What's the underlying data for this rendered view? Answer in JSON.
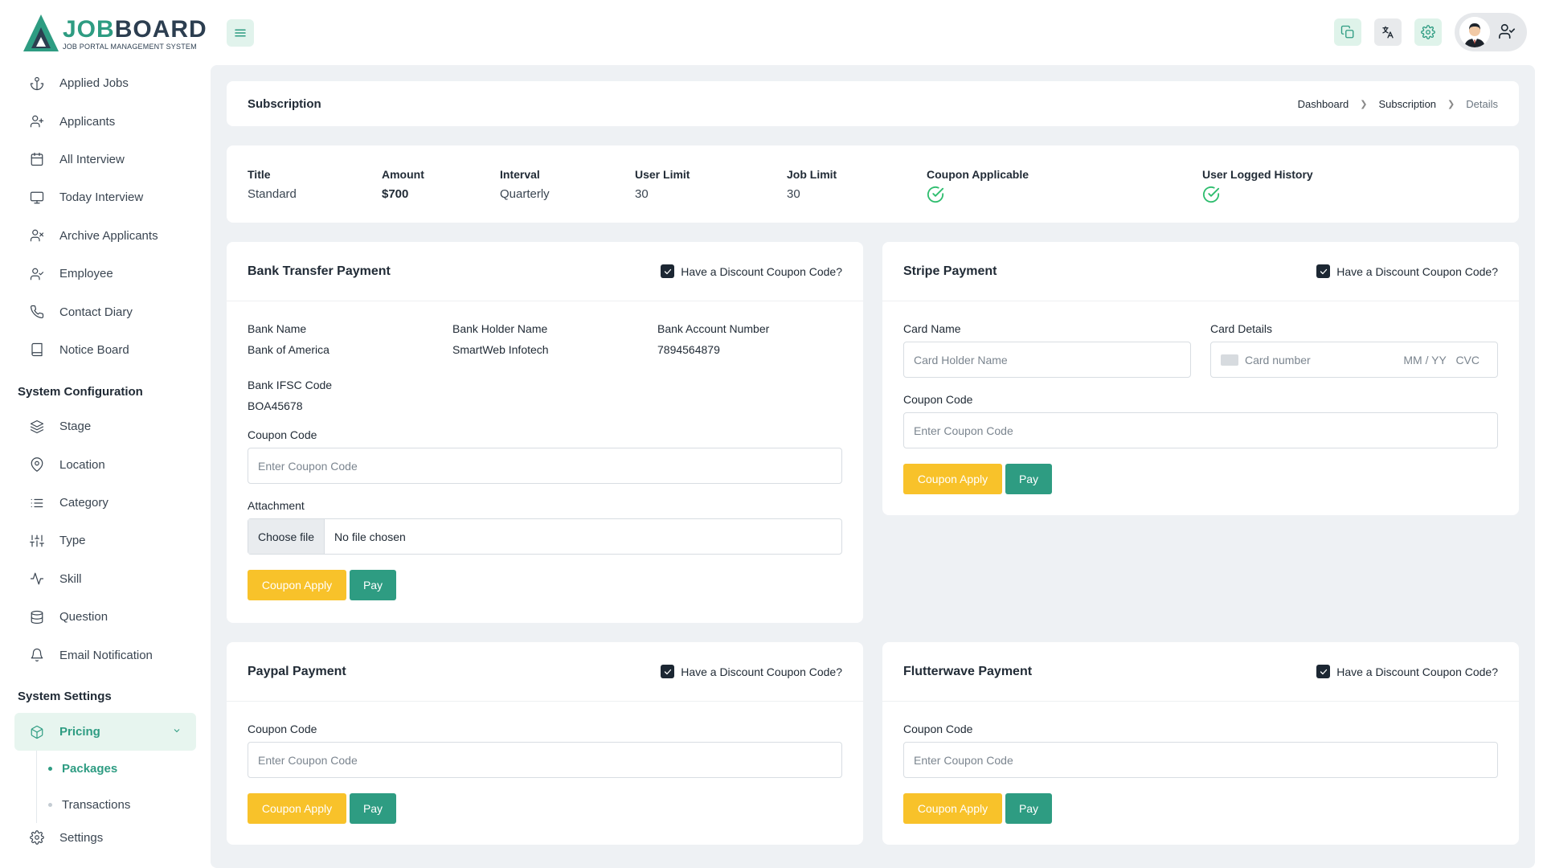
{
  "brand": {
    "title_main": "JOB",
    "title_accent": "BOARD",
    "subtitle": "JOB PORTAL MANAGEMENT SYSTEM"
  },
  "sidebar": {
    "items": [
      {
        "label": "Applied Jobs",
        "icon": "anchor-icon"
      },
      {
        "label": "Applicants",
        "icon": "user-plus-icon"
      },
      {
        "label": "All Interview",
        "icon": "calendar-icon"
      },
      {
        "label": "Today Interview",
        "icon": "monitor-icon"
      },
      {
        "label": "Archive Applicants",
        "icon": "user-x-icon"
      },
      {
        "label": "Employee",
        "icon": "user-check-icon"
      },
      {
        "label": "Contact Diary",
        "icon": "phone-icon"
      },
      {
        "label": "Notice Board",
        "icon": "book-icon"
      }
    ],
    "config_title": "System Configuration",
    "config_items": [
      {
        "label": "Stage",
        "icon": "layers-icon"
      },
      {
        "label": "Location",
        "icon": "map-pin-icon"
      },
      {
        "label": "Category",
        "icon": "list-icon"
      },
      {
        "label": "Type",
        "icon": "sliders-icon"
      },
      {
        "label": "Skill",
        "icon": "activity-icon"
      },
      {
        "label": "Question",
        "icon": "database-icon"
      },
      {
        "label": "Email Notification",
        "icon": "bell-icon"
      }
    ],
    "settings_title": "System Settings",
    "pricing_label": "Pricing",
    "sub_items": [
      "Packages",
      "Transactions"
    ],
    "settings_label": "Settings"
  },
  "header": {
    "title": "Subscription",
    "breadcrumb": [
      "Dashboard",
      "Subscription",
      "Details"
    ]
  },
  "plan": {
    "title_label": "Title",
    "title": "Standard",
    "amount_label": "Amount",
    "amount": "$700",
    "interval_label": "Interval",
    "interval": "Quarterly",
    "user_limit_label": "User Limit",
    "user_limit": "30",
    "job_limit_label": "Job Limit",
    "job_limit": "30",
    "coupon_label": "Coupon Applicable",
    "history_label": "User Logged History"
  },
  "common": {
    "discount_label": "Have a Discount Coupon Code?",
    "coupon_code_label": "Coupon Code",
    "coupon_placeholder": "Enter Coupon Code",
    "coupon_apply": "Coupon Apply",
    "pay": "Pay"
  },
  "bank": {
    "title": "Bank Transfer Payment",
    "bank_name_label": "Bank Name",
    "bank_name": "Bank of America",
    "holder_label": "Bank Holder Name",
    "holder": "SmartWeb Infotech",
    "account_label": "Bank Account Number",
    "account": "7894564879",
    "ifsc_label": "Bank IFSC Code",
    "ifsc": "BOA45678",
    "attachment_label": "Attachment",
    "choose_file": "Choose file",
    "no_file": "No file chosen"
  },
  "stripe": {
    "title": "Stripe Payment",
    "card_name_label": "Card Name",
    "card_name_placeholder": "Card Holder Name",
    "card_details_label": "Card Details",
    "card_number_placeholder": "Card number",
    "card_mmyy": "MM / YY",
    "card_cvc": "CVC"
  },
  "paypal": {
    "title": "Paypal Payment"
  },
  "flutterwave": {
    "title": "Flutterwave Payment"
  }
}
